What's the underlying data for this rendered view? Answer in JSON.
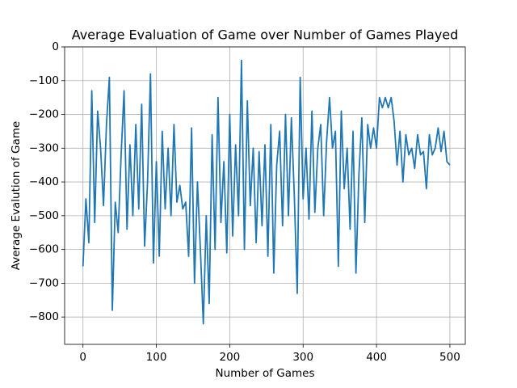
{
  "chart_data": {
    "type": "line",
    "title": "Average Evaluation of Game over Number of Games Played",
    "xlabel": "Number of Games",
    "ylabel": "Average Evalution of Game",
    "x": [
      0,
      4,
      8,
      12,
      16,
      20,
      24,
      28,
      32,
      36,
      40,
      44,
      48,
      52,
      56,
      60,
      64,
      68,
      72,
      76,
      80,
      84,
      88,
      92,
      96,
      100,
      104,
      108,
      112,
      116,
      120,
      124,
      128,
      132,
      136,
      140,
      144,
      148,
      152,
      156,
      160,
      164,
      168,
      172,
      176,
      180,
      184,
      188,
      192,
      196,
      200,
      204,
      208,
      212,
      216,
      220,
      224,
      228,
      232,
      236,
      240,
      244,
      248,
      252,
      256,
      260,
      264,
      268,
      272,
      276,
      280,
      284,
      288,
      292,
      296,
      300,
      304,
      308,
      312,
      316,
      320,
      324,
      328,
      332,
      336,
      340,
      344,
      348,
      352,
      356,
      360,
      364,
      368,
      372,
      376,
      380,
      384,
      388,
      392,
      396,
      400,
      404,
      408,
      412,
      416,
      420,
      424,
      428,
      432,
      436,
      440,
      444,
      448,
      452,
      456,
      460,
      464,
      468,
      472,
      476,
      480,
      484,
      488,
      492,
      496,
      500
    ],
    "series": [
      {
        "color": "#1f77b4",
        "values": [
          -650,
          -450,
          -580,
          -130,
          -520,
          -190,
          -300,
          -470,
          -230,
          -90,
          -780,
          -460,
          -550,
          -320,
          -130,
          -540,
          -290,
          -500,
          -230,
          -480,
          -170,
          -590,
          -400,
          -80,
          -640,
          -340,
          -620,
          -250,
          -480,
          -300,
          -500,
          -230,
          -460,
          -410,
          -480,
          -460,
          -620,
          -240,
          -700,
          -400,
          -600,
          -820,
          -500,
          -760,
          -260,
          -600,
          -150,
          -520,
          -340,
          -610,
          -200,
          -560,
          -290,
          -500,
          -40,
          -600,
          -160,
          -470,
          -300,
          -580,
          -310,
          -530,
          -290,
          -620,
          -230,
          -670,
          -350,
          -250,
          -530,
          -200,
          -500,
          -210,
          -440,
          -730,
          -90,
          -450,
          -300,
          -510,
          -190,
          -490,
          -300,
          -230,
          -500,
          -280,
          -150,
          -300,
          -250,
          -650,
          -190,
          -420,
          -300,
          -540,
          -250,
          -670,
          -380,
          -210,
          -520,
          -230,
          -300,
          -240,
          -300,
          -150,
          -180,
          -150,
          -180,
          -150,
          -220,
          -350,
          -250,
          -400,
          -260,
          -320,
          -300,
          -360,
          -260,
          -320,
          -310,
          -420,
          -260,
          -320,
          -300,
          -240,
          -310,
          -250,
          -340,
          -350
        ]
      }
    ],
    "xlim": [
      -25,
      521
    ],
    "ylim": [
      -881,
      0
    ],
    "xticks": [
      0,
      100,
      200,
      300,
      400,
      500
    ],
    "yticks": [
      0,
      {
        "value": -100,
        "label": "−100"
      },
      {
        "value": -200,
        "label": "−200"
      },
      {
        "value": -300,
        "label": "−300"
      },
      {
        "value": -400,
        "label": "−400"
      },
      {
        "value": -500,
        "label": "−500"
      },
      {
        "value": -600,
        "label": "−600"
      },
      {
        "value": -700,
        "label": "−700"
      },
      {
        "value": -800,
        "label": "−800"
      }
    ],
    "grid": true
  }
}
